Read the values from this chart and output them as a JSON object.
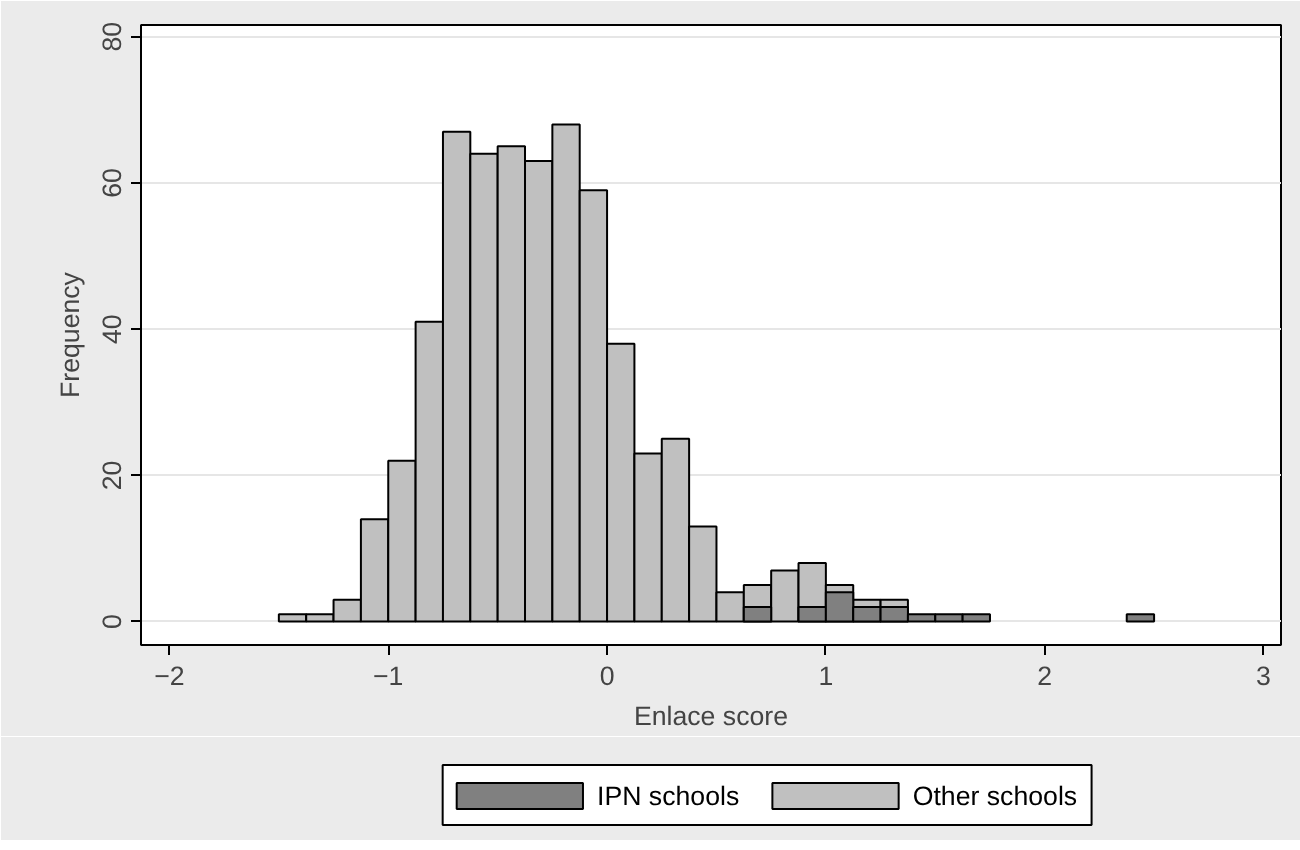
{
  "chart_data": {
    "type": "histogram",
    "xlabel": "Enlace score",
    "ylabel": "Frequency",
    "bins": [
      -1.5,
      -1.375,
      -1.25,
      -1.125,
      -1.0,
      -0.875,
      -0.75,
      -0.625,
      -0.5,
      -0.375,
      -0.25,
      -0.125,
      0.0,
      0.125,
      0.25,
      0.375,
      0.5,
      0.625,
      0.75,
      0.875,
      1.0,
      1.125,
      1.25,
      1.375,
      1.5,
      1.625,
      1.75,
      1.875,
      2.0,
      2.125,
      2.25,
      2.375,
      2.5
    ],
    "series": [
      {
        "name": "Other schools",
        "color": "#c0c0c0",
        "values": [
          1,
          1,
          3,
          14,
          22,
          41,
          67,
          64,
          65,
          63,
          68,
          59,
          38,
          23,
          25,
          13,
          4,
          5,
          7,
          8,
          5,
          3,
          3,
          0,
          0,
          0,
          0,
          0,
          0,
          0,
          0,
          0
        ]
      },
      {
        "name": "IPN schools",
        "color": "#808080",
        "values": [
          0,
          0,
          0,
          0,
          0,
          0,
          0,
          0,
          0,
          0,
          0,
          0,
          0,
          0,
          0,
          0,
          0,
          2,
          0,
          2,
          4,
          2,
          2,
          1,
          1,
          1,
          0,
          0,
          0,
          0,
          0,
          1
        ]
      }
    ],
    "xlim": [
      -2.13,
      3.08
    ],
    "ylim": [
      -3.2,
      81.6
    ],
    "xticks": [
      -2,
      -1,
      0,
      1,
      2,
      3
    ],
    "yticks": [
      0,
      20,
      40,
      60,
      80
    ],
    "grid": "y",
    "legend": "bottom"
  }
}
